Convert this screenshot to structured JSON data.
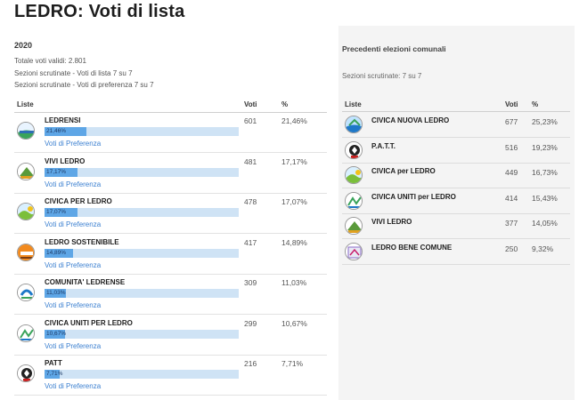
{
  "page": {
    "title": "LEDRO: Voti di lista"
  },
  "current": {
    "year": "2020",
    "meta": [
      "Totale voti validi: 2.801",
      "Sezioni scrutinate - Voti di lista 7 su 7",
      "Sezioni scrutinate - Voti di preferenza 7 su 7"
    ],
    "headers": {
      "liste": "Liste",
      "voti": "Voti",
      "pct": "%"
    },
    "pref_link": "Voti di Preferenza",
    "rows": [
      {
        "name": "LEDRENSI",
        "votes": "601",
        "pct": "21,46%",
        "bar": 0.2146,
        "logo": "ledrensi"
      },
      {
        "name": "VIVI LEDRO",
        "votes": "481",
        "pct": "17,17%",
        "bar": 0.1717,
        "logo": "vivi"
      },
      {
        "name": "CIVICA PER LEDRO",
        "votes": "478",
        "pct": "17,07%",
        "bar": 0.1707,
        "logo": "civica"
      },
      {
        "name": "LEDRO SOSTENIBILE",
        "votes": "417",
        "pct": "14,89%",
        "bar": 0.1489,
        "logo": "sostenibile"
      },
      {
        "name": "COMUNITA' LEDRENSE",
        "votes": "309",
        "pct": "11,03%",
        "bar": 0.1103,
        "logo": "comunita"
      },
      {
        "name": "CIVICA UNITI PER LEDRO",
        "votes": "299",
        "pct": "10,67%",
        "bar": 0.1067,
        "logo": "uniti"
      },
      {
        "name": "PATT",
        "votes": "216",
        "pct": "7,71%",
        "bar": 0.0771,
        "logo": "patt"
      }
    ]
  },
  "previous": {
    "title": "Precedenti elezioni comunali",
    "meta": "Sezioni scrutinate: 7 su 7",
    "headers": {
      "liste": "Liste",
      "voti": "Voti",
      "pct": "%"
    },
    "rows": [
      {
        "name": "CIVICA NUOVA LEDRO",
        "votes": "677",
        "pct": "25,23%",
        "logo": "nuova"
      },
      {
        "name": "P.A.T.T.",
        "votes": "516",
        "pct": "19,23%",
        "logo": "patt"
      },
      {
        "name": "CIVICA per LEDRO",
        "votes": "449",
        "pct": "16,73%",
        "logo": "civica"
      },
      {
        "name": "CIVICA UNITI per LEDRO",
        "votes": "414",
        "pct": "15,43%",
        "logo": "uniti"
      },
      {
        "name": "VIVI LEDRO",
        "votes": "377",
        "pct": "14,05%",
        "logo": "vivi"
      },
      {
        "name": "LEDRO BENE COMUNE",
        "votes": "250",
        "pct": "9,32%",
        "logo": "bene"
      }
    ]
  },
  "colors": {
    "bar_fill": "#5ea6e6",
    "bar_track": "#cfe3f5",
    "link": "#3a7fd0",
    "panel_bg": "#f4f4f4"
  }
}
